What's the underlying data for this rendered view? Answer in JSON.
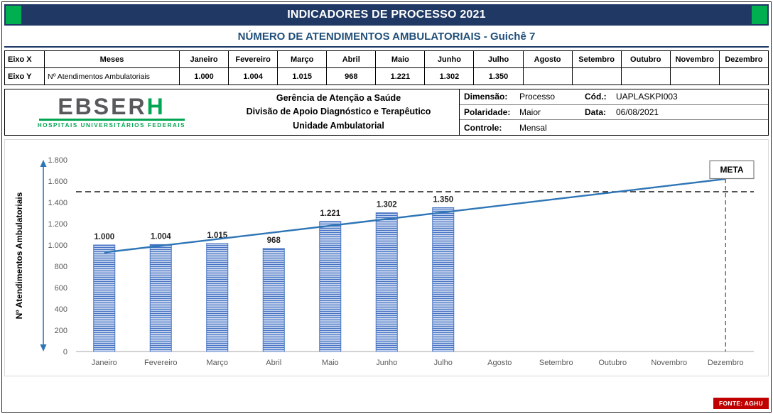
{
  "banner": {
    "title": "INDICADORES DE PROCESSO 2021"
  },
  "subtitle": "NÚMERO DE ATENDIMENTOS AMBULATORIAIS -  Guichê 7",
  "axis_table": {
    "x_label": "Eixo X",
    "y_label": "Eixo Y",
    "x_header": "Meses",
    "y_header": "Nº Atendimentos Ambulatoriais",
    "months": [
      "Janeiro",
      "Fevereiro",
      "Março",
      "Abril",
      "Maio",
      "Junho",
      "Julho",
      "Agosto",
      "Setembro",
      "Outubro",
      "Novembro",
      "Dezembro"
    ],
    "values": [
      "1.000",
      "1.004",
      "1.015",
      "968",
      "1.221",
      "1.302",
      "1.350",
      "",
      "",
      "",
      "",
      ""
    ]
  },
  "org_header": {
    "logo_main": "EBSER",
    "logo_accent": "H",
    "logo_subtitle": "HOSPITAIS UNIVERSITÁRIOS FEDERAIS",
    "line1": "Gerência de Atenção a Saúde",
    "line2": "Divisão de Apoio Diagnóstico e Terapêutico",
    "line3": "Unidade Ambulatorial",
    "info": {
      "dimensao_label": "Dimensão:",
      "dimensao_value": "Processo",
      "cod_label": "Cód.:",
      "cod_value": "UAPLASKPI003",
      "polaridade_label": "Polaridade:",
      "polaridade_value": "Maior",
      "data_label": "Data:",
      "data_value": "06/08/2021",
      "controle_label": "Controle:",
      "controle_value": "Mensal"
    }
  },
  "chart_data": {
    "type": "bar",
    "title": "",
    "categories": [
      "Janeiro",
      "Fevereiro",
      "Março",
      "Abril",
      "Maio",
      "Junho",
      "Julho",
      "Agosto",
      "Setembro",
      "Outubro",
      "Novembro",
      "Dezembro"
    ],
    "values": [
      1000,
      1004,
      1015,
      968,
      1221,
      1302,
      1350,
      null,
      null,
      null,
      null,
      null
    ],
    "value_labels": [
      "1.000",
      "1.004",
      "1.015",
      "968",
      "1.221",
      "1.302",
      "1.350"
    ],
    "xlabel": "",
    "ylabel": "Nº Atendimentos Ambulatoriais",
    "ylim": [
      0,
      1800
    ],
    "ytick_step": 200,
    "ytick_labels": [
      "0",
      "200",
      "400",
      "600",
      "800",
      "1.000",
      "1.200",
      "1.400",
      "1.600",
      "1.800"
    ],
    "meta": {
      "label": "META",
      "value": 1500
    },
    "trend_line": {
      "start_value": 930,
      "end_value": 1620
    },
    "dashed_vertical_at": "Dezembro",
    "grid": false,
    "legend_position": "none",
    "bar_color": "#4472C4",
    "trend_color": "#2E75B6"
  },
  "footer": {
    "fonte": "FONTE: AGHU"
  },
  "colors": {
    "banner_bg": "#1F3864",
    "accent_green": "#00B050",
    "subtitle_blue": "#1F4E79",
    "fonte_bg": "#C00000",
    "logo_gray": "#58595B",
    "logo_green": "#00A651"
  }
}
